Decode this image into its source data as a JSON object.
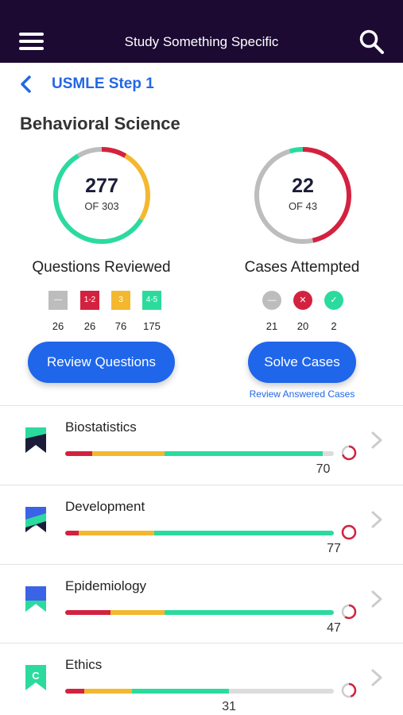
{
  "header": {
    "title": "Study Something Specific",
    "menu_icon": "hamburger-menu-icon",
    "search_icon": "search-icon"
  },
  "breadcrumb": {
    "label": "USMLE Step 1",
    "back_icon": "chevron-left-icon"
  },
  "section": {
    "title": "Behavioral Science"
  },
  "questions": {
    "reviewed": "277",
    "total_text": "OF 303",
    "label": "Questions Reviewed",
    "legend": [
      {
        "key": "unseen",
        "chip": "—",
        "count": "26",
        "color": "#bdbdbd"
      },
      {
        "key": "1-2",
        "chip": "1-2",
        "count": "26",
        "color": "#d3223f"
      },
      {
        "key": "3",
        "chip": "3",
        "count": "76",
        "color": "#f4b82f"
      },
      {
        "key": "4-5",
        "chip": "4-5",
        "count": "175",
        "color": "#2bdb9e"
      }
    ],
    "button_label": "Review Questions"
  },
  "cases": {
    "attempted": "22",
    "total_text": "OF 43",
    "label": "Cases Attempted",
    "legend": [
      {
        "key": "unattempted",
        "chip": "—",
        "count": "21",
        "color": "#bdbdbd"
      },
      {
        "key": "wrong",
        "chip": "✕",
        "count": "20",
        "color": "#d3223f"
      },
      {
        "key": "correct",
        "chip": "✓",
        "count": "2",
        "color": "#2bdb9e"
      }
    ],
    "button_label": "Solve Cases",
    "secondary_link": "Review Answered Cases"
  },
  "colors": {
    "accent": "#1f66ea",
    "red": "#d3223f",
    "yellow": "#f4b82f",
    "green": "#2bdb9e",
    "gray": "#dcdcdc",
    "header_bg": "#1c0a33"
  },
  "subjects": [
    {
      "name": "Biostatistics",
      "score": "70",
      "segments": [
        0.1,
        0.27,
        0.59,
        0.04
      ],
      "bookmark": [
        "#2bdb9e",
        "#1c1c3a"
      ],
      "mini_progress": 0.7,
      "letter": ""
    },
    {
      "name": "Development",
      "score": "77",
      "segments": [
        0.05,
        0.28,
        0.67,
        0.0
      ],
      "bookmark": [
        "#3a63e6",
        "#2bdb9e",
        "#1c1c3a"
      ],
      "mini_progress": 1.0,
      "letter": ""
    },
    {
      "name": "Epidemiology",
      "score": "47",
      "segments": [
        0.17,
        0.2,
        0.63,
        0.0
      ],
      "bookmark": [
        "#3a63e6",
        "#2bdb9e"
      ],
      "mini_progress": 0.6,
      "letter": ""
    },
    {
      "name": "Ethics",
      "score": "31",
      "segments": [
        0.07,
        0.18,
        0.36,
        0.39
      ],
      "bookmark": [
        "#2bdb9e"
      ],
      "mini_progress": 0.45,
      "letter": "C"
    }
  ]
}
